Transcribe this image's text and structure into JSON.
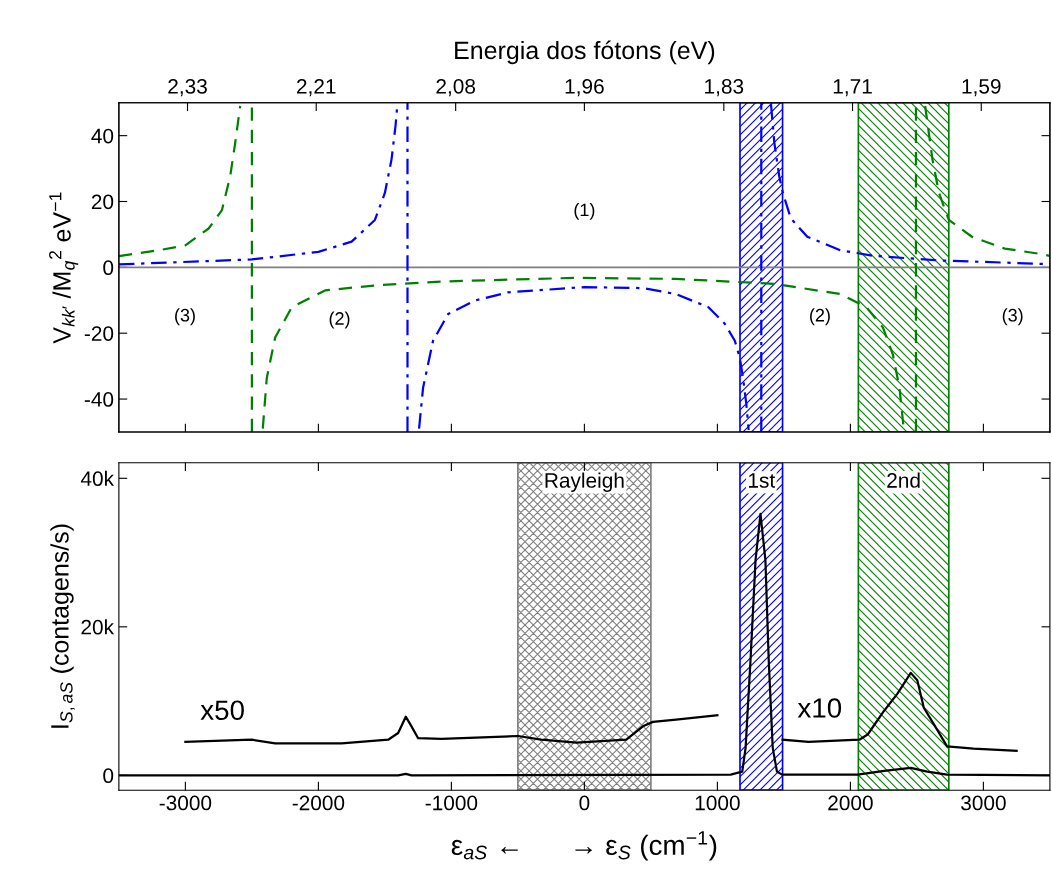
{
  "chart_data": [
    {
      "type": "line",
      "x2label": "Energia dos fótons (eV)",
      "ylabel": "V$_{kk′}$ /M$_{q}$$^{2}$ eV$^{−1}$",
      "tick_labels": "y",
      "xlim": [
        -3500,
        3500
      ],
      "xticks": [
        {
          "value": -3000,
          "label": null
        },
        {
          "value": -2000,
          "label": null
        },
        {
          "value": -1000,
          "label": null
        },
        {
          "value": 0,
          "label": null
        },
        {
          "value": 1000,
          "label": null
        },
        {
          "value": 2000,
          "label": null
        },
        {
          "value": 3000,
          "label": null
        }
      ],
      "x2lim": [
        2.394,
        1.526
      ],
      "x2ticks": [
        {
          "value": 2.33,
          "label": "2,33"
        },
        {
          "value": 2.21,
          "label": "2,21"
        },
        {
          "value": 2.08,
          "label": "2,08"
        },
        {
          "value": 1.96,
          "label": "1,96"
        },
        {
          "value": 1.83,
          "label": "1,83"
        },
        {
          "value": 1.71,
          "label": "1,71"
        },
        {
          "value": 1.59,
          "label": "1,59"
        }
      ],
      "ylim": [
        -50,
        50
      ],
      "yticks": [
        -40,
        -20,
        0,
        20,
        40
      ],
      "grid": false,
      "legend": false,
      "ref_lines": [
        {
          "axis": "y",
          "value": 0,
          "label": null,
          "color": "#808080"
        },
        {
          "axis": "x",
          "value": -2500,
          "label": null,
          "color": "#008000",
          "line_style": "dashed"
        },
        {
          "axis": "x",
          "value": 2493,
          "label": null,
          "color": "#008000",
          "line_style": "dashed"
        },
        {
          "axis": "x",
          "value": -1330,
          "label": null,
          "color": "#0000ff",
          "line_style": "dashdot"
        },
        {
          "axis": "x",
          "value": 1330,
          "label": null,
          "color": "#0000ff",
          "line_style": "dashdot"
        }
      ],
      "bands": [
        {
          "axis": "x",
          "from": 1170,
          "to": 1490,
          "label": null,
          "color": "#0000ff"
        },
        {
          "axis": "x",
          "from": 2060,
          "to": 2740,
          "label": null,
          "color": "#008000"
        }
      ],
      "series": [
        {
          "color": "#008000",
          "line_style": "dashed",
          "x": [
            -3500,
            -3200,
            -3000,
            -2825,
            -2725,
            -2663,
            -2625,
            -2588,
            null,
            -2418,
            -2388,
            -2325,
            -2200,
            -1950,
            -1575,
            -1075,
            -75,
            686,
            1428,
            1923,
            2121,
            2245,
            2319,
            2369,
            2401,
            null,
            2562,
            2617,
            2666,
            2740,
            2914,
            3161,
            3408,
            3500
          ],
          "values": [
            3.4,
            5.2,
            6.7,
            11.8,
            17.4,
            27.7,
            37.9,
            49,
            null,
            -49,
            -33.6,
            -21.3,
            -12.1,
            -7,
            -5.5,
            -4.3,
            -3.2,
            -3.5,
            -5,
            -8.1,
            -12.1,
            -18.3,
            -26.4,
            -36.6,
            -49,
            null,
            49,
            32.8,
            22.6,
            14.4,
            9.3,
            5.7,
            4.2,
            3.5
          ]
        },
        {
          "color": "#0000ff",
          "line_style": "dashdot",
          "x": [
            -3500,
            -2500,
            -2000,
            -1750,
            -1575,
            -1500,
            -1450,
            -1420,
            -1408,
            null,
            -1243,
            -1213,
            -1138,
            -1025,
            -825,
            -575,
            0,
            438,
            686,
            933,
            1057,
            1131,
            1168,
            1193,
            1218,
            1235,
            null,
            1403,
            1428,
            1465,
            1493,
            1552,
            1676,
            1923,
            2171,
            2666,
            3408,
            3500
          ],
          "values": [
            0.9,
            2.4,
            4.7,
            7.8,
            14.4,
            22.6,
            32.8,
            43,
            48.6,
            null,
            -49,
            -36.6,
            -22.3,
            -14.2,
            -10.1,
            -7.6,
            -6,
            -6.3,
            -8.1,
            -12.1,
            -17.2,
            -22.3,
            -27.4,
            -33.6,
            -41.7,
            -49.4,
            null,
            49.6,
            37.9,
            27.7,
            22.5,
            14.9,
            9.3,
            5.2,
            3.5,
            2.1,
            1.1,
            1
          ]
        }
      ],
      "annotations": [
        "(1)",
        "(2)",
        "(2)",
        "(3)",
        "(3)"
      ]
    },
    {
      "type": "line",
      "xlabel": "ε$_{aS}$ ←      → ε$_{S}$ (cm$^{−1}$)",
      "ylabel": "I$_{S,aS}$ (contagens/s)",
      "xlim": [
        -3500,
        3500
      ],
      "xticks": [
        -3000,
        -2000,
        -1000,
        0,
        1000,
        2000,
        3000
      ],
      "ylim": [
        -2000,
        42100
      ],
      "yticks": [
        {
          "value": 0,
          "label": "0"
        },
        {
          "value": 20000,
          "label": "20k"
        },
        {
          "value": 40000,
          "label": "40k"
        }
      ],
      "grid": false,
      "legend": false,
      "bands": [
        {
          "axis": "x",
          "from": -500,
          "to": 500,
          "label": "Rayleigh",
          "color": "#808080"
        },
        {
          "axis": "x",
          "from": 1170,
          "to": 1490,
          "label": "1st",
          "color": "#0000ff"
        },
        {
          "axis": "x",
          "from": 2060,
          "to": 2740,
          "label": "2nd",
          "color": "#008000"
        }
      ],
      "series": [
        {
          "color": "#000000",
          "line_style": "solid",
          "x": [
            -3500,
            -1400,
            -1343,
            -1300,
            1100,
            1187,
            1212,
            1249,
            1287,
            1324,
            1361,
            1386,
            1416,
            1448,
            1486,
            2055,
            2254,
            2454,
            2578,
            2727,
            3500
          ],
          "values": [
            0,
            0,
            200,
            0,
            100,
            500,
            3700,
            15500,
            29000,
            35200,
            29000,
            15500,
            3700,
            500,
            100,
            100,
            600,
            1000,
            500,
            100,
            0
          ]
        },
        {
          "name": "x50",
          "color": "#000000",
          "line_style": "solid",
          "x": [
            -3000,
            -2500,
            -2325,
            -1825,
            -1475,
            -1400,
            -1343,
            -1300,
            -1250,
            -1075,
            -500,
            -325,
            -59,
            315,
            440,
            515,
            690,
            1000
          ],
          "values": [
            4500,
            4800,
            4300,
            4300,
            4800,
            5700,
            7900,
            6600,
            5000,
            4900,
            5300,
            4800,
            4400,
            4800,
            6600,
            7200,
            7500,
            8100
          ]
        },
        {
          "name": "x10",
          "color": "#000000",
          "line_style": "solid",
          "x": [
            1490,
            1685,
            2067,
            2130,
            2254,
            2354,
            2454,
            2503,
            2552,
            2627,
            2727,
            2926,
            3250
          ],
          "values": [
            4800,
            4500,
            4800,
            5500,
            8700,
            11000,
            13800,
            12800,
            9100,
            6900,
            3900,
            3600,
            3300
          ]
        }
      ]
    }
  ]
}
